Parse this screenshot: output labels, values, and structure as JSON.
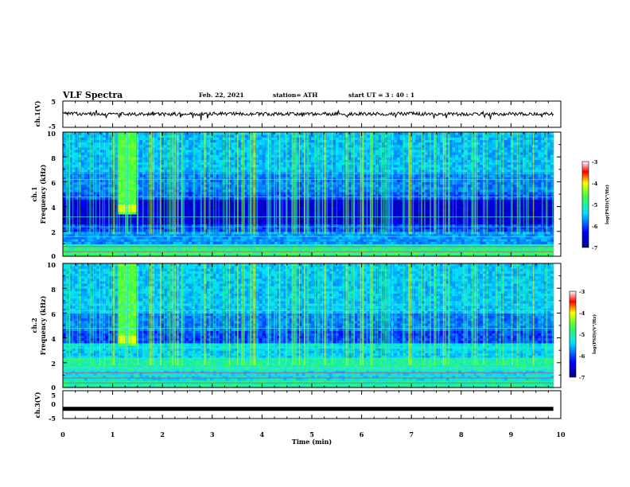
{
  "header": {
    "title": "VLF Spectra",
    "date": "Feb. 22, 2021",
    "station": "station= ATH",
    "start": "start  UT =  3 : 40 : 1"
  },
  "chart_data": [
    {
      "type": "line",
      "panel": "ch1-waveform",
      "ylabel": "ch.1(V)",
      "ylim": [
        -5,
        5
      ],
      "y_ticks": [
        "5",
        "-5"
      ],
      "x": [
        0,
        1,
        2,
        3,
        4,
        5,
        6,
        7,
        8,
        9,
        9.85
      ],
      "values": [
        0.2,
        0.1,
        0.0,
        0.2,
        0.1,
        0.0,
        0.1,
        0.2,
        0.0,
        0.1,
        0.1
      ]
    },
    {
      "type": "heatmap",
      "panel": "ch1-spectrogram",
      "ylabel": "ch.1",
      "ylabel2": "Frequency (kHz)",
      "ylim": [
        0,
        10
      ],
      "y_ticks": [
        "10",
        "8",
        "6",
        "4",
        "2",
        "0"
      ],
      "burst": {
        "t_start": 1.1,
        "t_end": 1.45,
        "f_min": 3.3,
        "f_max": 10
      },
      "colorbar": {
        "range": [
          -7,
          -3
        ],
        "ticks": [
          "-3",
          "-4",
          "-5",
          "-6",
          "-7"
        ],
        "label": "log(PSD)(V²/Hz)"
      }
    },
    {
      "type": "heatmap",
      "panel": "ch2-spectrogram",
      "ylabel": "ch.2",
      "ylabel2": "Frequency (kHz)",
      "ylim": [
        0,
        10
      ],
      "y_ticks": [
        "10",
        "8",
        "6",
        "4",
        "2",
        "0"
      ],
      "burst": {
        "t_start": 1.1,
        "t_end": 1.45,
        "f_min": 3.3,
        "f_max": 10
      },
      "colorbar": {
        "range": [
          -7,
          -3
        ],
        "ticks": [
          "-3",
          "-4",
          "-5",
          "-6",
          "-7"
        ],
        "label": "log(PSD)(V²/Hz)"
      }
    },
    {
      "type": "line",
      "panel": "ch3-waveform",
      "ylabel": "ch.3(V)",
      "ylim": [
        -5,
        5
      ],
      "y_ticks": [
        "5",
        "0",
        "-5"
      ],
      "x": [
        0,
        9.85
      ],
      "values": [
        -1.5,
        -1.5
      ]
    }
  ],
  "xaxis": {
    "label": "Time (min)",
    "ticks": [
      "0",
      "1",
      "2",
      "3",
      "4",
      "5",
      "6",
      "7",
      "8",
      "9",
      "10"
    ],
    "xlim": [
      0,
      10
    ],
    "data_end": 9.85
  },
  "colors": {
    "spectro_low": "#000090",
    "spectro_mid": "#00d0d0",
    "spectro_high": "#ff0000",
    "trace": "#000000"
  }
}
